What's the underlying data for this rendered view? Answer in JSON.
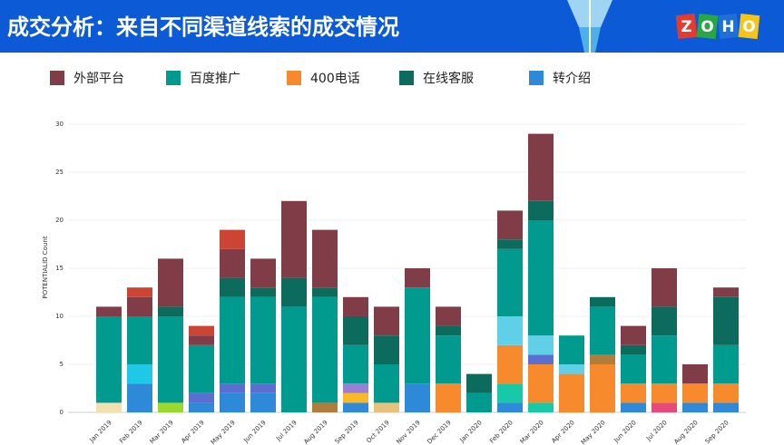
{
  "chart_data": {
    "type": "stacked-bar",
    "title": "成交分析：来自不同渠道线索的成交情况",
    "y_label": "POTENTIALID Count",
    "categories": [
      "Jan 2019",
      "Feb 2019",
      "Mar 2019",
      "Apr 2019",
      "May 2019",
      "Jun 2019",
      "Jul 2019",
      "Aug 2019",
      "Sep 2019",
      "Oct 2019",
      "Nov 2019",
      "Dec 2019",
      "Jan 2020",
      "Feb 2020",
      "Mar 2020",
      "Apr 2020",
      "May 2020",
      "Jun 2020",
      "Jul 2020",
      "Aug 2020",
      "Sep 2020"
    ],
    "series": [
      {
        "name": "外部平台",
        "color": "#803d48",
        "values": [
          1,
          2,
          5,
          1,
          3,
          3,
          8,
          6,
          2,
          3,
          2,
          2,
          0,
          3,
          7,
          0,
          0,
          2,
          4,
          2,
          1
        ]
      },
      {
        "name": "百度推广",
        "color": "#009a8e",
        "values": [
          9,
          5,
          9,
          5,
          9,
          9,
          11,
          11,
          4,
          4,
          10,
          5,
          2,
          7,
          12,
          3,
          5,
          3,
          5,
          0,
          4
        ]
      },
      {
        "name": "400电话",
        "color": "#f78a2c",
        "values": [
          0,
          0,
          0,
          0,
          0,
          0,
          0,
          0,
          0,
          0,
          0,
          3,
          0,
          4,
          4,
          4,
          5,
          2,
          2,
          2,
          2
        ]
      },
      {
        "name": "在线客服",
        "color": "#0d6b5e",
        "values": [
          0,
          0,
          1,
          0,
          2,
          1,
          3,
          1,
          3,
          3,
          0,
          1,
          2,
          1,
          2,
          0,
          1,
          1,
          3,
          0,
          5
        ]
      },
      {
        "name": "转介绍",
        "color": "#2e8ad8",
        "values": [
          0,
          3,
          0,
          1,
          2,
          2,
          0,
          0,
          1,
          0,
          3,
          0,
          0,
          1,
          0,
          0,
          0,
          1,
          0,
          1,
          1
        ]
      },
      {
        "color": "#f3dfb0",
        "values": [
          1,
          0,
          0,
          0,
          0,
          0,
          0,
          0,
          0,
          0,
          0,
          0,
          0,
          0,
          0,
          0,
          0,
          0,
          0,
          0,
          0
        ]
      },
      {
        "color": "#1ec8e6",
        "values": [
          0,
          2,
          0,
          0,
          0,
          0,
          0,
          0,
          0,
          0,
          0,
          0,
          0,
          0,
          0,
          0,
          0,
          0,
          0,
          0,
          0
        ]
      },
      {
        "color": "#9bd830",
        "values": [
          0,
          0,
          1,
          0,
          0,
          0,
          0,
          0,
          0,
          0,
          0,
          0,
          0,
          0,
          0,
          0,
          0,
          0,
          0,
          0,
          0
        ]
      },
      {
        "color": "#5b6fd1",
        "values": [
          0,
          0,
          0,
          1,
          1,
          1,
          0,
          0,
          0,
          0,
          0,
          0,
          0,
          0,
          1,
          0,
          0,
          0,
          0,
          0,
          0
        ]
      },
      {
        "color": "#cc4433",
        "values": [
          0,
          1,
          0,
          1,
          2,
          0,
          0,
          0,
          0,
          0,
          0,
          0,
          0,
          0,
          0,
          0,
          0,
          0,
          0,
          0,
          0
        ]
      },
      {
        "color": "#b07d3a",
        "values": [
          0,
          0,
          0,
          0,
          0,
          0,
          0,
          1,
          0,
          0,
          0,
          0,
          0,
          0,
          0,
          0,
          1,
          0,
          0,
          0,
          0
        ]
      },
      {
        "color": "#f7b924",
        "values": [
          0,
          0,
          0,
          0,
          0,
          0,
          0,
          0,
          1,
          0,
          0,
          0,
          0,
          0,
          0,
          0,
          0,
          0,
          0,
          0,
          0
        ]
      },
      {
        "color": "#9a7fd6",
        "values": [
          0,
          0,
          0,
          0,
          0,
          0,
          0,
          0,
          1,
          0,
          0,
          0,
          0,
          0,
          0,
          0,
          0,
          0,
          0,
          0,
          0
        ]
      },
      {
        "color": "#e6c27d",
        "values": [
          0,
          0,
          0,
          0,
          0,
          0,
          0,
          0,
          0,
          1,
          0,
          0,
          0,
          0,
          0,
          0,
          0,
          0,
          0,
          0,
          0
        ]
      },
      {
        "color": "#17c9a6",
        "values": [
          0,
          0,
          0,
          0,
          0,
          0,
          0,
          0,
          0,
          0,
          0,
          0,
          0,
          2,
          1,
          0,
          0,
          0,
          0,
          0,
          0
        ]
      },
      {
        "color": "#5fd0e8",
        "values": [
          0,
          0,
          0,
          0,
          0,
          0,
          0,
          0,
          0,
          0,
          0,
          0,
          0,
          3,
          2,
          1,
          0,
          0,
          0,
          0,
          0
        ]
      },
      {
        "color": "#e6497a",
        "values": [
          0,
          0,
          0,
          0,
          0,
          0,
          0,
          0,
          0,
          0,
          0,
          0,
          0,
          0,
          0,
          0,
          0,
          0,
          1,
          0,
          0
        ]
      }
    ],
    "ylim": [
      0,
      30
    ],
    "yticks": [
      0,
      5,
      10,
      15,
      20,
      25,
      30
    ],
    "grid": true
  },
  "logo": [
    "Z",
    "O",
    "H",
    "O"
  ]
}
